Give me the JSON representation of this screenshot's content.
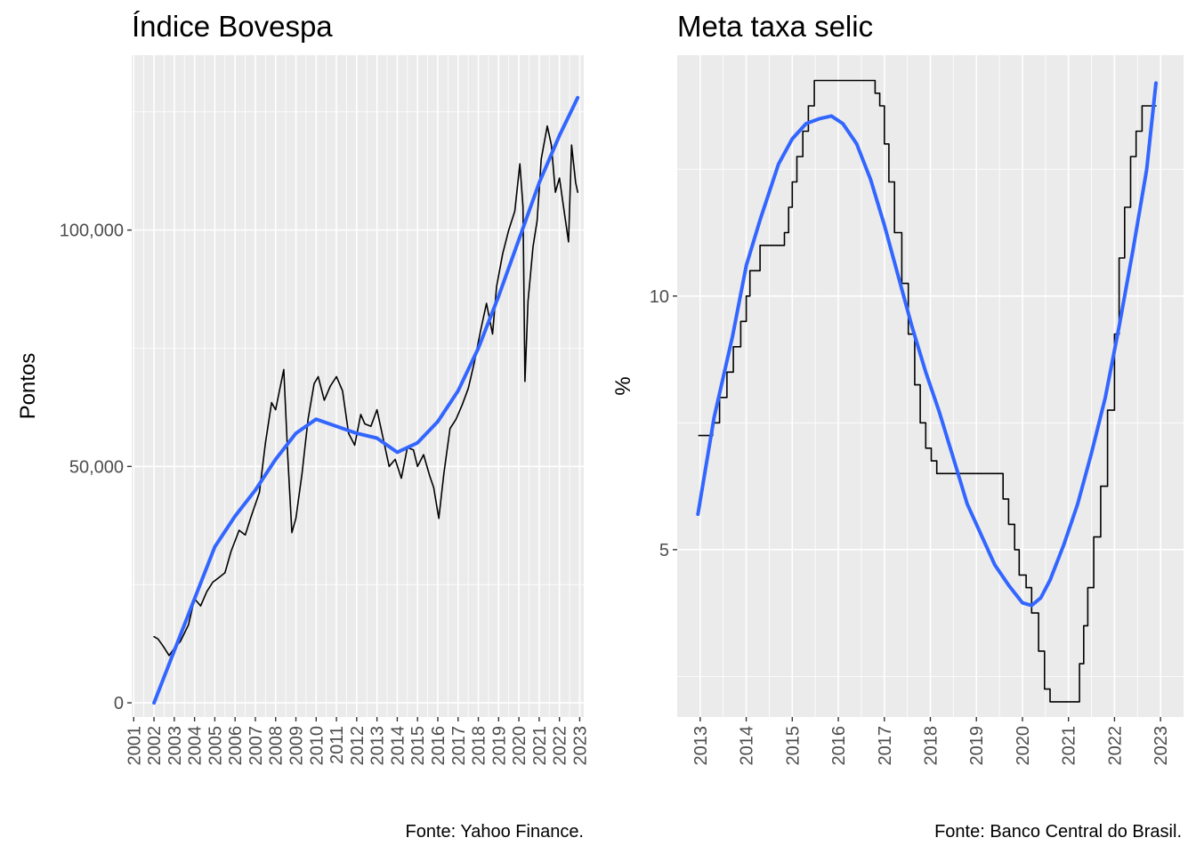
{
  "chart_data": [
    {
      "type": "line",
      "title": "Índice Bovespa",
      "xlabel": "",
      "ylabel": "Pontos",
      "caption": "Fonte: Yahoo Finance.",
      "xlim": [
        2000.9,
        2023.2
      ],
      "ylim": [
        -3000,
        137000
      ],
      "x_ticks": [
        "2001",
        "2002",
        "2003",
        "2004",
        "2005",
        "2006",
        "2007",
        "2008",
        "2009",
        "2010",
        "2011",
        "2012",
        "2013",
        "2014",
        "2015",
        "2016",
        "2017",
        "2018",
        "2019",
        "2020",
        "2021",
        "2022",
        "2023"
      ],
      "y_ticks": [
        0,
        50000,
        100000
      ],
      "y_tick_labels": [
        "0",
        "50,000",
        "100,000"
      ],
      "grid": true,
      "series": [
        {
          "role": "observed",
          "color": "#000000",
          "x": [
            2002.0,
            2002.2,
            2002.45,
            2002.75,
            2003.0,
            2003.3,
            2003.7,
            2004.0,
            2004.3,
            2004.6,
            2004.9,
            2005.2,
            2005.5,
            2005.8,
            2006.2,
            2006.5,
            2006.8,
            2007.2,
            2007.5,
            2007.8,
            2008.0,
            2008.4,
            2008.6,
            2008.8,
            2009.0,
            2009.3,
            2009.6,
            2009.9,
            2010.1,
            2010.4,
            2010.7,
            2011.0,
            2011.3,
            2011.6,
            2011.9,
            2012.2,
            2012.4,
            2012.7,
            2013.0,
            2013.3,
            2013.6,
            2013.9,
            2014.2,
            2014.5,
            2014.8,
            2015.0,
            2015.3,
            2015.6,
            2015.8,
            2016.05,
            2016.3,
            2016.6,
            2016.9,
            2017.2,
            2017.5,
            2017.8,
            2018.1,
            2018.4,
            2018.7,
            2018.9,
            2019.2,
            2019.5,
            2019.8,
            2020.05,
            2020.2,
            2020.3,
            2020.45,
            2020.7,
            2020.9,
            2021.1,
            2021.4,
            2021.6,
            2021.8,
            2022.0,
            2022.2,
            2022.45,
            2022.6,
            2022.8,
            2022.9
          ],
          "y": [
            14000,
            13500,
            12000,
            10000,
            11500,
            13000,
            16500,
            22000,
            20500,
            23500,
            25500,
            26500,
            27500,
            32000,
            36500,
            35500,
            39500,
            44500,
            55000,
            63500,
            62000,
            70500,
            52000,
            36000,
            39000,
            48500,
            60000,
            67500,
            69000,
            64000,
            67000,
            69000,
            66000,
            57000,
            54500,
            61000,
            59000,
            58500,
            62000,
            56000,
            50000,
            51500,
            47500,
            54000,
            53500,
            50000,
            52500,
            48000,
            45500,
            39000,
            48500,
            58000,
            60000,
            63000,
            66500,
            72000,
            78500,
            84500,
            78000,
            88000,
            95000,
            100000,
            104000,
            114000,
            105000,
            68000,
            85000,
            96500,
            102000,
            115000,
            122000,
            118000,
            108000,
            111000,
            105000,
            97500,
            118000,
            110000,
            108000
          ]
        },
        {
          "role": "smooth",
          "color": "#3366FF",
          "x": [
            2002.0,
            2003.0,
            2004.0,
            2005.0,
            2006.0,
            2007.0,
            2008.0,
            2009.0,
            2010.0,
            2011.0,
            2012.0,
            2013.0,
            2014.0,
            2015.0,
            2016.0,
            2017.0,
            2018.0,
            2019.0,
            2020.0,
            2021.0,
            2022.0,
            2022.9
          ],
          "y": [
            0,
            11000,
            22000,
            33000,
            39500,
            45000,
            51500,
            57000,
            60000,
            58500,
            57000,
            56000,
            53000,
            55000,
            59500,
            66000,
            75000,
            86000,
            98000,
            110000,
            120000,
            128000
          ]
        }
      ]
    },
    {
      "type": "line",
      "title": "Meta taxa selic",
      "xlabel": "",
      "ylabel": "%",
      "caption": "Fonte: Banco Central do Brasil.",
      "xlim": [
        2012.5,
        2023.5
      ],
      "ylim": [
        1.7,
        14.75
      ],
      "x_ticks": [
        "2013",
        "2014",
        "2015",
        "2016",
        "2017",
        "2018",
        "2019",
        "2020",
        "2021",
        "2022",
        "2023"
      ],
      "y_ticks": [
        5,
        10
      ],
      "y_tick_labels": [
        "5",
        "10"
      ],
      "grid": true,
      "series": [
        {
          "role": "observed",
          "color": "#000000",
          "step": true,
          "x": [
            2012.97,
            2013.27,
            2013.42,
            2013.58,
            2013.72,
            2013.88,
            2014.0,
            2014.08,
            2014.3,
            2014.83,
            2014.92,
            2015.0,
            2015.1,
            2015.23,
            2015.35,
            2015.48,
            2015.6,
            2016.8,
            2016.9,
            2017.0,
            2017.1,
            2017.22,
            2017.38,
            2017.52,
            2017.66,
            2017.78,
            2017.9,
            2018.02,
            2018.14,
            2018.25,
            2019.58,
            2019.7,
            2019.83,
            2019.93,
            2020.08,
            2020.2,
            2020.35,
            2020.48,
            2020.6,
            2021.24,
            2021.33,
            2021.42,
            2021.55,
            2021.7,
            2021.85,
            2022.0,
            2022.1,
            2022.22,
            2022.35,
            2022.47,
            2022.6,
            2022.9
          ],
          "y": [
            7.25,
            7.5,
            8.0,
            8.5,
            9.0,
            9.5,
            10.0,
            10.5,
            11.0,
            11.25,
            11.75,
            12.25,
            12.75,
            13.25,
            13.75,
            14.25,
            14.25,
            14.0,
            13.75,
            13.0,
            12.25,
            11.25,
            10.25,
            9.25,
            8.25,
            7.5,
            7.0,
            6.75,
            6.5,
            6.5,
            6.0,
            5.5,
            5.0,
            4.5,
            4.25,
            3.75,
            3.0,
            2.25,
            2.0,
            2.75,
            3.5,
            4.25,
            5.25,
            6.25,
            7.75,
            9.25,
            10.75,
            11.75,
            12.75,
            13.25,
            13.75,
            13.75
          ]
        },
        {
          "role": "smooth",
          "color": "#3366FF",
          "x": [
            2012.95,
            2013.3,
            2013.7,
            2014.0,
            2014.3,
            2014.7,
            2015.0,
            2015.3,
            2015.6,
            2015.85,
            2016.1,
            2016.4,
            2016.7,
            2017.0,
            2017.3,
            2017.6,
            2017.9,
            2018.2,
            2018.5,
            2018.8,
            2019.1,
            2019.4,
            2019.7,
            2020.0,
            2020.2,
            2020.4,
            2020.6,
            2020.9,
            2021.2,
            2021.5,
            2021.8,
            2022.1,
            2022.4,
            2022.7,
            2022.9
          ],
          "y": [
            5.7,
            7.6,
            9.2,
            10.6,
            11.5,
            12.6,
            13.1,
            13.4,
            13.5,
            13.55,
            13.4,
            13.0,
            12.3,
            11.4,
            10.4,
            9.4,
            8.5,
            7.7,
            6.8,
            5.9,
            5.3,
            4.7,
            4.3,
            3.95,
            3.9,
            4.05,
            4.4,
            5.1,
            5.9,
            6.9,
            8.0,
            9.4,
            10.9,
            12.5,
            14.2
          ]
        }
      ]
    }
  ]
}
